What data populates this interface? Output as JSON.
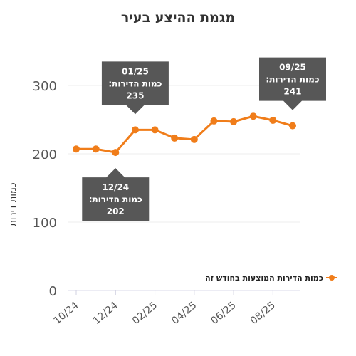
{
  "chart_data": {
    "type": "line",
    "title": "מגמת ההיצע בעיר",
    "ylabel": "כמות דירות",
    "xlabel": "",
    "categories": [
      "10/24",
      "11/24",
      "12/24",
      "01/25",
      "02/25",
      "03/25",
      "04/25",
      "05/25",
      "06/25",
      "07/25",
      "08/25",
      "09/25"
    ],
    "x_tick_labels": [
      "10/24",
      "12/24",
      "02/25",
      "04/25",
      "06/25",
      "08/25"
    ],
    "y_ticks": [
      0,
      100,
      200,
      300
    ],
    "ylim": [
      0,
      300
    ],
    "grid": true,
    "legend_position": "right",
    "series": [
      {
        "name": "כמות הדירות המוצעות בחודש זה",
        "color": "#F07D1A",
        "values": [
          207,
          207,
          202,
          235,
          235,
          223,
          221,
          248,
          247,
          255,
          249,
          241
        ]
      }
    ],
    "annotations": [
      {
        "category": "12/24",
        "period": "12/24",
        "label": "כמות הדירות:",
        "value": "202",
        "placement": "below"
      },
      {
        "category": "01/25",
        "period": "01/25",
        "label": "כמות הדירות:",
        "value": "235",
        "placement": "above"
      },
      {
        "category": "09/25",
        "period": "09/25",
        "label": "כמות הדירות:",
        "value": "241",
        "placement": "above"
      }
    ]
  }
}
